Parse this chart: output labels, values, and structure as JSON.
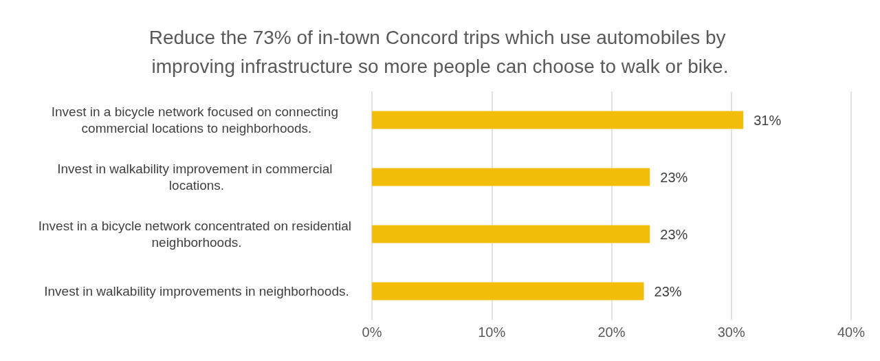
{
  "chart_data": {
    "type": "bar",
    "orientation": "horizontal",
    "title": "Reduce the 73% of in-town Concord trips which use automobiles by improving infrastructure so more people can choose to walk or bike.",
    "categories": [
      "Invest in a bicycle network focused on connecting commercial locations to neighborhoods.",
      "Invest in walkability improvement in commercial locations.",
      "Invest in a bicycle network concentrated on residential neighborhoods.",
      "Invest in walkability improvements in neighborhoods."
    ],
    "values": [
      31,
      23.2,
      23.2,
      22.7
    ],
    "value_labels": [
      "31%",
      "23%",
      "23%",
      "23%"
    ],
    "color": "#f2be0a",
    "xlim": [
      0,
      40
    ],
    "xticks": [
      {
        "value": 0,
        "label": "0%"
      },
      {
        "value": 10,
        "label": "10%"
      },
      {
        "value": 20,
        "label": "20%"
      },
      {
        "value": 30,
        "label": "30%"
      },
      {
        "value": 40,
        "label": "40%"
      }
    ],
    "grid": "x"
  }
}
